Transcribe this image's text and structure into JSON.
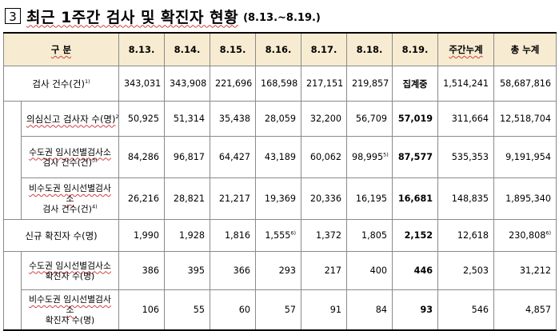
{
  "title": {
    "number": "3",
    "text": "최근 1주간 검사 및 확진자 현황",
    "range": "(8.13.~8.19.)"
  },
  "table": {
    "header": {
      "label": "구 분",
      "dates": [
        "8.13.",
        "8.14.",
        "8.15.",
        "8.16.",
        "8.17.",
        "8.18.",
        "8.19."
      ],
      "weekly": "주간누계",
      "total": "총 누계"
    },
    "rows": [
      {
        "label": "검사 건수(건)",
        "label_sup": "1)",
        "values": [
          "343,031",
          "343,908",
          "221,696",
          "168,598",
          "217,151",
          "219,857",
          "집계중"
        ],
        "sups": [
          "",
          "",
          "",
          "",
          "",
          "",
          ""
        ],
        "weekly": "1,514,241",
        "total": "58,687,816",
        "total_sup": ""
      },
      {
        "label": "의심신고 검사자 수(명)",
        "label_sup": "2)",
        "values": [
          "50,925",
          "51,314",
          "35,438",
          "28,059",
          "32,200",
          "56,709",
          "57,019"
        ],
        "sups": [
          "",
          "",
          "",
          "",
          "",
          "",
          ""
        ],
        "weekly": "311,664",
        "total": "12,518,704",
        "total_sup": ""
      },
      {
        "label_line1": "수도권 임시선별검사소",
        "label_line2": "검사 건수(건)",
        "label_sup": "3)",
        "values": [
          "84,286",
          "96,817",
          "64,427",
          "43,189",
          "60,062",
          "98,995",
          "87,577"
        ],
        "sups": [
          "",
          "",
          "",
          "",
          "",
          "5)",
          ""
        ],
        "weekly": "535,353",
        "total": "9,191,954",
        "total_sup": ""
      },
      {
        "label_line1": "비수도권 임시선별검사소",
        "label_line2": "검사 건수(건)",
        "label_sup": "4)",
        "values": [
          "26,216",
          "28,821",
          "21,217",
          "19,369",
          "20,336",
          "16,195",
          "16,681"
        ],
        "sups": [
          "",
          "",
          "",
          "",
          "",
          "",
          ""
        ],
        "weekly": "148,835",
        "total": "1,895,340",
        "total_sup": ""
      },
      {
        "label": "신규 확진자 수(명)",
        "label_sup": "",
        "values": [
          "1,990",
          "1,928",
          "1,816",
          "1,555",
          "1,372",
          "1,805",
          "2,152"
        ],
        "sups": [
          "",
          "",
          "",
          "6)",
          "",
          "",
          ""
        ],
        "weekly": "12,618",
        "total": "230,808",
        "total_sup": "6)"
      },
      {
        "label_line1": "수도권 임시선별검사소",
        "label_line2": "확진자 수(명)",
        "label_sup": "",
        "values": [
          "386",
          "395",
          "366",
          "293",
          "217",
          "400",
          "446"
        ],
        "sups": [
          "",
          "",
          "",
          "",
          "",
          "",
          ""
        ],
        "weekly": "2,503",
        "total": "31,212",
        "total_sup": ""
      },
      {
        "label_line1": "비수도권 임시선별검사소",
        "label_line2": "확진자 수(명)",
        "label_sup": "",
        "values": [
          "106",
          "55",
          "60",
          "57",
          "91",
          "84",
          "93"
        ],
        "sups": [
          "",
          "",
          "",
          "",
          "",
          "",
          ""
        ],
        "weekly": "546",
        "total": "4,857",
        "total_sup": ""
      }
    ]
  }
}
